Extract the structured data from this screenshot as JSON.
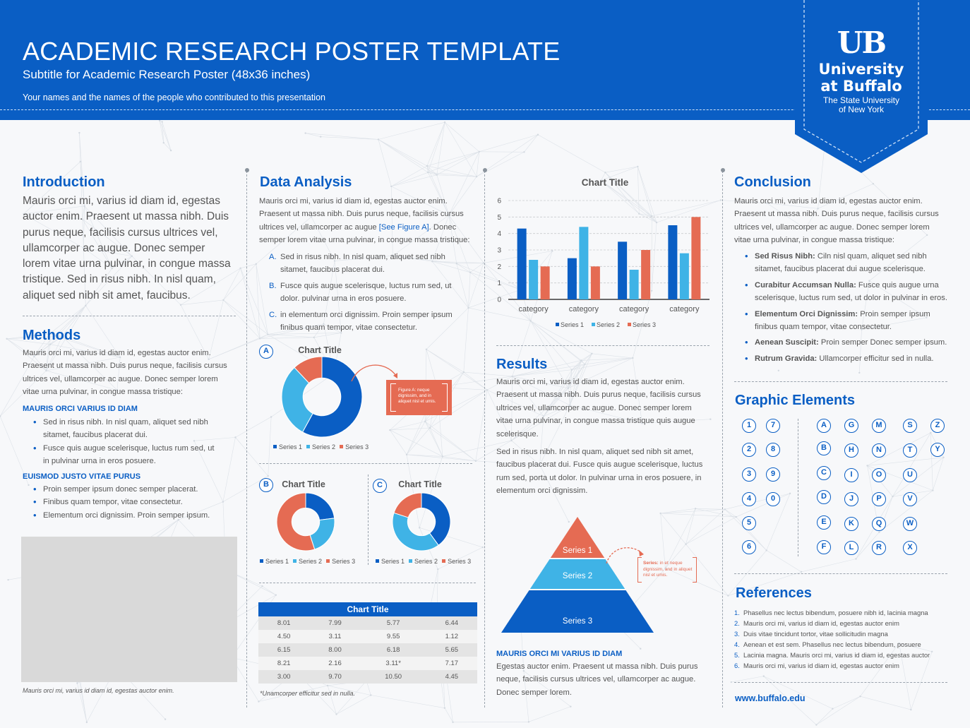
{
  "header": {
    "title": "ACADEMIC RESEARCH POSTER TEMPLATE",
    "subtitle": "Subtitle for Academic Research Poster (48x36 inches)",
    "authors": "Your names and the names of the people who contributed to this presentation",
    "logo": {
      "mark": "UB",
      "line1": "University",
      "line2": "at Buffalo",
      "line3": "The State University",
      "line4": "of New York"
    }
  },
  "colors": {
    "primary": "#0a5ec4",
    "light": "#3fb3e6",
    "accent": "#e56b53",
    "gray": "#d9d9d9"
  },
  "intro": {
    "heading": "Introduction",
    "body": "Mauris orci mi, varius id diam id, egestas auctor enim. Praesent ut massa nibh. Duis purus neque, facilisis cursus ultrices vel, ullamcorper ac augue. Donec semper lorem vitae urna pulvinar, in congue massa tristique. Sed in risus nibh. In nisl quam, aliquet sed nibh sit amet, faucibus."
  },
  "methods": {
    "heading": "Methods",
    "body": "Mauris orci mi, varius id diam id, egestas auctor enim. Praesent ut massa nibh. Duis purus neque, facilisis cursus ultrices vel, ullamcorper ac augue. Donec semper lorem vitae urna pulvinar, in congue massa tristique:",
    "sub1": "MAURIS ORCI VARIUS ID DIAM",
    "bullets1": [
      "Sed in risus nibh. In nisl quam, aliquet sed nibh sitamet, faucibus placerat dui.",
      "Fusce quis augue scelerisque, luctus rum sed, ut in pulvinar urna in eros posuere."
    ],
    "sub2": "EUISMOD JUSTO VITAE PURUS",
    "bullets2": [
      "Proin semper ipsum donec semper placerat.",
      "Finibus quam tempor, vitae consectetur.",
      "Elementum orci dignissim. Proin semper ipsum."
    ],
    "caption": "Mauris orci mi, varius id diam id, egestas auctor enim."
  },
  "analysis": {
    "heading": "Data Analysis",
    "body_pre": "Mauris orci mi, varius id diam id, egestas auctor enim. Praesent ut massa nibh. Duis purus neque, facilisis cursus ultrices vel, ullamcorper ac augue ",
    "body_link": "[See Figure A]",
    "body_post": ". Donec semper lorem vitae urna pulvinar, in congue massa tristique:",
    "items": [
      {
        "letter": "A.",
        "text": "Sed in risus nibh. In nisl quam, aliquet sed nibh sitamet, faucibus placerat dui."
      },
      {
        "letter": "B.",
        "text": "Fusce quis augue scelerisque, luctus rum sed, ut dolor. pulvinar urna in eros posuere."
      },
      {
        "letter": "C.",
        "text": "in elementum orci dignissim. Proin semper ipsum finibus quam tempor, vitae consectetur."
      }
    ],
    "figure_note": "Figure A: neque dignissim, and in aliquet nisl et umis.",
    "table_caption": "*Unamcorper efficitur sed in nulla."
  },
  "results": {
    "heading": "Results",
    "body1": "Mauris orci mi, varius id diam id, egestas auctor enim. Praesent ut massa nibh. Duis purus neque, facilisis cursus ultrices vel, ullamcorper ac augue. Donec semper lorem vitae urna pulvinar, in congue massa tristique quis augue scelerisque.",
    "body2": "Sed in risus nibh. In nisl quam, aliquet sed nibh sit amet, faucibus placerat dui. Fusce quis augue scelerisque, luctus rum sed, porta ut dolor. In pulvinar urna in eros posuere, in elementum orci dignissim.",
    "pyramid_note_label": "Series:",
    "pyramid_note": " in et neque dignissim, and in aliquet nisl et umis.",
    "sub": "MAURIS ORCI MI VARIUS ID DIAM",
    "body3": "Egestas auctor enim. Praesent ut massa nibh. Duis purus neque, facilisis cursus ultrices vel, ullamcorper ac augue. Donec semper lorem."
  },
  "conclusion": {
    "heading": "Conclusion",
    "body": "Mauris orci mi, varius id diam id, egestas auctor enim. Praesent ut massa nibh. Duis purus neque, facilisis cursus ultrices vel, ullamcorper ac augue. Donec semper lorem vitae urna pulvinar, in congue massa tristique:",
    "bullets": [
      {
        "bold": "Sed Risus Nibh:",
        "text": " Ciln nisl quam, aliquet sed nibh sitamet, faucibus placerat dui augue scelerisque."
      },
      {
        "bold": "Curabitur Accumsan Nulla:",
        "text": " Fusce quis augue urna scelerisque, luctus rum sed, ut dolor in pulvinar in eros."
      },
      {
        "bold": " Elementum Orci Dignissim:",
        "text": " Proin semper ipsum finibus quam tempor, vitae consectetur."
      },
      {
        "bold": "Aenean Suscipit:",
        "text": " Proin semper Donec semper ipsum."
      },
      {
        "bold": "Rutrum Gravida:",
        "text": " Ullamcorper efficitur sed in nulla."
      }
    ]
  },
  "graphic": {
    "heading": "Graphic Elements",
    "numbers_a": [
      "1",
      "2",
      "3",
      "4",
      "5",
      "6"
    ],
    "numbers_b": [
      "7",
      "8",
      "9",
      "0"
    ],
    "letters": [
      [
        "A",
        "B",
        "C",
        "D",
        "E",
        "F"
      ],
      [
        "G",
        "H",
        "I",
        "J",
        "K",
        "L"
      ],
      [
        "M",
        "N",
        "O",
        "P",
        "Q",
        "R"
      ],
      [
        "S",
        "T",
        "U",
        "V",
        "W",
        "X"
      ],
      [
        "Z",
        "Y"
      ]
    ]
  },
  "references": {
    "heading": "References",
    "items": [
      "Phasellus nec lectus bibendum, posuere nibh id, lacinia magna",
      "Mauris orci mi, varius id diam id, egestas auctor enim",
      "Duis vitae tincidunt tortor, vitae sollicitudin magna",
      "Aenean et est sem. Phasellus nec lectus bibendum, posuere",
      "Lacinia magna. Mauris orci mi, varius id diam id, egestas auctor",
      "Mauris orci mi, varius id diam id, egestas auctor enim"
    ],
    "url": "www.buffalo.edu"
  },
  "chart_data": [
    {
      "id": "bar",
      "type": "bar",
      "title": "Chart Title",
      "categories": [
        "category",
        "category",
        "category",
        "category"
      ],
      "ylim": [
        0,
        6
      ],
      "yticks": [
        "0",
        "1",
        "2",
        "3",
        "4",
        "5",
        "6"
      ],
      "grid": true,
      "legend": "bottom",
      "series": [
        {
          "name": "Series 1",
          "color": "#0a5ec4",
          "values": [
            4.3,
            2.5,
            3.5,
            4.5
          ]
        },
        {
          "name": "Series 2",
          "color": "#3fb3e6",
          "values": [
            2.4,
            4.4,
            1.8,
            2.8
          ]
        },
        {
          "name": "Series 3",
          "color": "#e56b53",
          "values": [
            2.0,
            2.0,
            3.0,
            5.0
          ]
        }
      ]
    },
    {
      "id": "A",
      "type": "pie",
      "title": "Chart Title",
      "legend": "bottom",
      "labels": [
        "Series 1",
        "Series 2",
        "Series 3"
      ],
      "values": [
        58,
        30,
        12
      ],
      "colors": [
        "#0a5ec4",
        "#3fb3e6",
        "#e56b53"
      ]
    },
    {
      "id": "B",
      "type": "pie",
      "title": "Chart Title",
      "legend": "bottom",
      "labels": [
        "Series 1",
        "Series 2",
        "Series 3"
      ],
      "values": [
        23,
        22,
        55
      ],
      "colors": [
        "#0a5ec4",
        "#3fb3e6",
        "#e56b53"
      ]
    },
    {
      "id": "C",
      "type": "pie",
      "title": "Chart Title",
      "legend": "bottom",
      "labels": [
        "Series 1",
        "Series 2",
        "Series 3"
      ],
      "values": [
        40,
        40,
        20
      ],
      "colors": [
        "#0a5ec4",
        "#3fb3e6",
        "#e56b53"
      ]
    },
    {
      "id": "pyramid",
      "type": "pyramid",
      "labels": [
        "Series 1",
        "Series 2",
        "Series 3"
      ],
      "colors": [
        "#e56b53",
        "#3fb3e6",
        "#0a5ec4"
      ]
    },
    {
      "id": "table",
      "type": "table",
      "title": "Chart Title",
      "rows": [
        [
          "8.01",
          "7.99",
          "5.77",
          "6.44"
        ],
        [
          "4.50",
          "3.11",
          "9.55",
          "1.12"
        ],
        [
          "6.15",
          "8.00",
          "6.18",
          "5.65"
        ],
        [
          "8.21",
          "2.16",
          "3.11*",
          "7.17"
        ],
        [
          "3.00",
          "9.70",
          "10.50",
          "4.45"
        ]
      ]
    }
  ]
}
